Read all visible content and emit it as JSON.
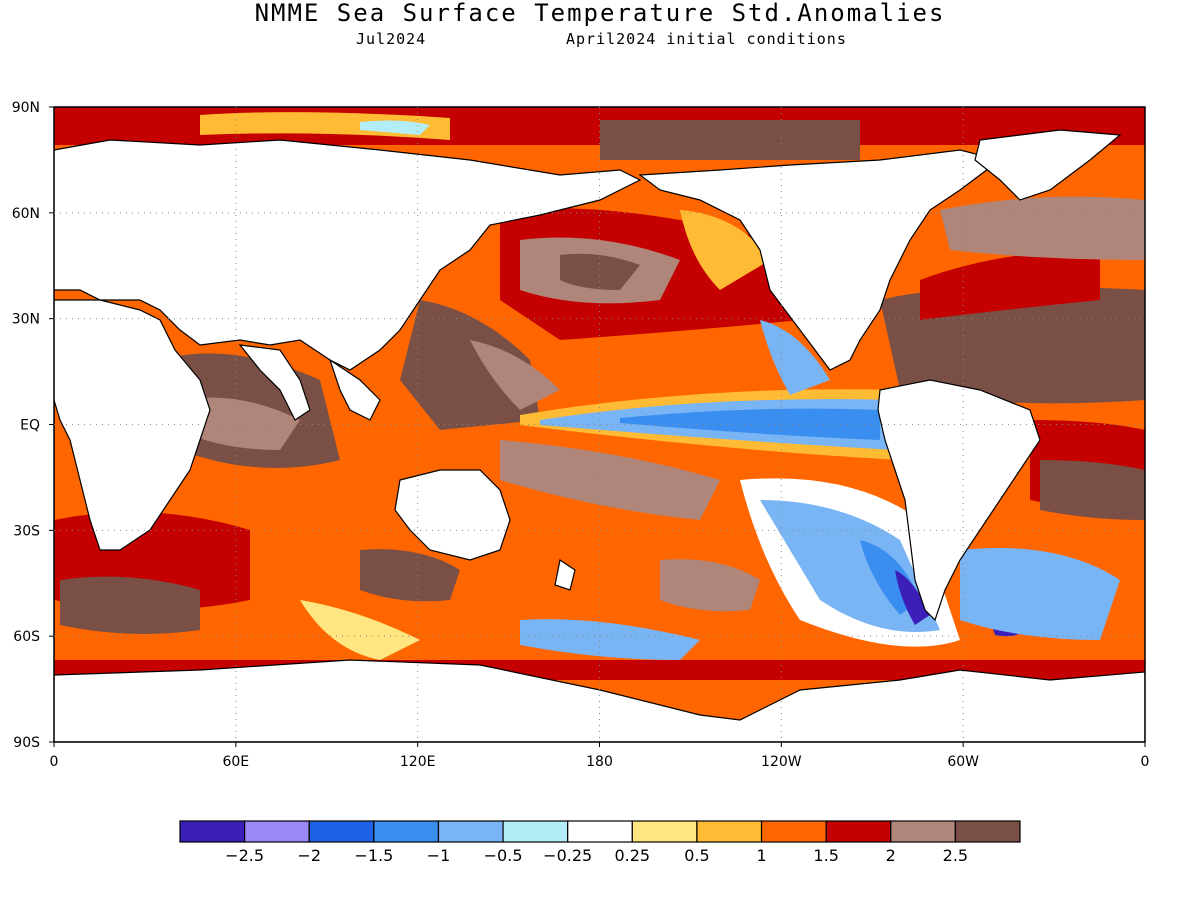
{
  "title": "NMME Sea Surface Temperature Std.Anomalies",
  "subtitle_left": "Jul2024",
  "subtitle_right": "April2024 initial conditions",
  "lat_ticks": [
    {
      "label": "90N",
      "lat": 90
    },
    {
      "label": "60N",
      "lat": 60
    },
    {
      "label": "30N",
      "lat": 30
    },
    {
      "label": "EQ",
      "lat": 0
    },
    {
      "label": "30S",
      "lat": -30
    },
    {
      "label": "60S",
      "lat": -60
    },
    {
      "label": "90S",
      "lat": -90
    }
  ],
  "lon_ticks": [
    {
      "label": "0",
      "lon": 0
    },
    {
      "label": "60E",
      "lon": 60
    },
    {
      "label": "120E",
      "lon": 120
    },
    {
      "label": "180",
      "lon": 180
    },
    {
      "label": "120W",
      "lon": 240
    },
    {
      "label": "60W",
      "lon": 300
    },
    {
      "label": "0",
      "lon": 360
    }
  ],
  "colorbar": {
    "colors": [
      "#3b1fb8",
      "#9b87f5",
      "#1f62e8",
      "#3a8ef0",
      "#79b4f4",
      "#b3eef8",
      "#ffffff",
      "#ffe680",
      "#ffbb33",
      "#ff6600",
      "#c40000",
      "#b0857a",
      "#7a5046"
    ],
    "labels": [
      "-2.5",
      "-2",
      "-1.5",
      "-1",
      "-0.5",
      "-0.25",
      "0.25",
      "0.5",
      "1",
      "1.5",
      "2",
      "2.5"
    ]
  }
}
